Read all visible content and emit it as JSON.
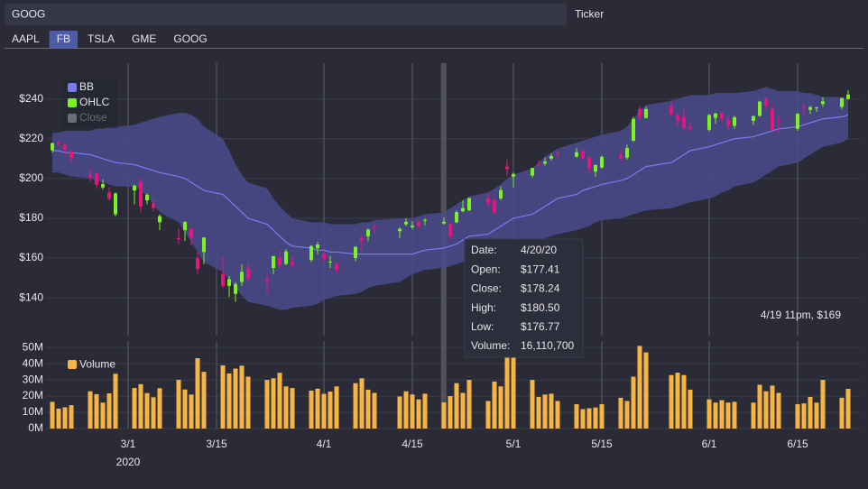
{
  "ticker_input": {
    "value": "GOOG",
    "label": "Ticker"
  },
  "tabs": {
    "items": [
      "AAPL",
      "FB",
      "TSLA",
      "GME",
      "GOOG"
    ],
    "active": 1
  },
  "chart_data": {
    "type": "candlestick",
    "x": [
      "2020-02-18",
      "2020-02-19",
      "2020-02-20",
      "2020-02-21",
      "2020-02-24",
      "2020-02-25",
      "2020-02-26",
      "2020-02-27",
      "2020-02-28",
      "2020-03-02",
      "2020-03-03",
      "2020-03-04",
      "2020-03-05",
      "2020-03-06",
      "2020-03-09",
      "2020-03-10",
      "2020-03-11",
      "2020-03-12",
      "2020-03-13",
      "2020-03-16",
      "2020-03-17",
      "2020-03-18",
      "2020-03-19",
      "2020-03-20",
      "2020-03-23",
      "2020-03-24",
      "2020-03-25",
      "2020-03-26",
      "2020-03-27",
      "2020-03-30",
      "2020-03-31",
      "2020-04-01",
      "2020-04-02",
      "2020-04-03",
      "2020-04-06",
      "2020-04-07",
      "2020-04-08",
      "2020-04-09",
      "2020-04-13",
      "2020-04-14",
      "2020-04-15",
      "2020-04-16",
      "2020-04-17",
      "2020-04-20",
      "2020-04-21",
      "2020-04-22",
      "2020-04-23",
      "2020-04-24",
      "2020-04-27",
      "2020-04-28",
      "2020-04-29",
      "2020-04-30",
      "2020-05-01",
      "2020-05-04",
      "2020-05-05",
      "2020-05-06",
      "2020-05-07",
      "2020-05-08",
      "2020-05-11",
      "2020-05-12",
      "2020-05-13",
      "2020-05-14",
      "2020-05-15",
      "2020-05-18",
      "2020-05-19",
      "2020-05-20",
      "2020-05-21",
      "2020-05-22",
      "2020-05-26",
      "2020-05-27",
      "2020-05-28",
      "2020-05-29",
      "2020-06-01",
      "2020-06-02",
      "2020-06-03",
      "2020-06-04",
      "2020-06-05",
      "2020-06-08",
      "2020-06-09",
      "2020-06-10",
      "2020-06-11",
      "2020-06-12",
      "2020-06-15",
      "2020-06-16",
      "2020-06-17",
      "2020-06-18",
      "2020-06-19",
      "2020-06-22",
      "2020-06-23"
    ],
    "xlim": [
      "2020-02-17",
      "2020-06-25"
    ],
    "xticks": [
      {
        "value": "2020-03-01",
        "label": "3/1"
      },
      {
        "value": "2020-03-15",
        "label": "3/15"
      },
      {
        "value": "2020-04-01",
        "label": "4/1"
      },
      {
        "value": "2020-04-15",
        "label": "4/15"
      },
      {
        "value": "2020-05-01",
        "label": "5/1"
      },
      {
        "value": "2020-05-15",
        "label": "5/15"
      },
      {
        "value": "2020-06-01",
        "label": "6/1"
      },
      {
        "value": "2020-06-15",
        "label": "6/15"
      }
    ],
    "x_year_label": {
      "value": "2020-03-01",
      "label": "2020"
    },
    "open": [
      214.2,
      218.0,
      217.0,
      213.5,
      202.0,
      202.5,
      195.5,
      193.0,
      182.0,
      194.0,
      198.5,
      189.0,
      187.5,
      178.0,
      170.0,
      174.0,
      174.5,
      160.0,
      163.0,
      152.0,
      146.0,
      142.0,
      148.0,
      155.0,
      149.0,
      155.0,
      160.0,
      157.0,
      158.0,
      159.0,
      165.0,
      162.0,
      158.0,
      157.0,
      160.0,
      170.0,
      171.0,
      176.0,
      173.5,
      177.0,
      175.5,
      178.0,
      179.0,
      177.41,
      177.0,
      178.0,
      183.5,
      184.0,
      190.0,
      189.0,
      190.0,
      206.0,
      201.0,
      201.5,
      207.0,
      207.5,
      210.0,
      213.0,
      211.0,
      213.5,
      210.5,
      203.5,
      205.5,
      212.0,
      210.5,
      219.0,
      235.0,
      230.5,
      236.5,
      232.0,
      231.0,
      226.0,
      224.5,
      230.5,
      233.0,
      229.5,
      226.5,
      229.0,
      231.5,
      240.0,
      235.0,
      229.0,
      225.0,
      236.0,
      234.5,
      235.5,
      237.5,
      236.0,
      240.0
    ],
    "high": [
      218.0,
      219.0,
      217.4,
      214.0,
      205.0,
      203.0,
      199.5,
      195.5,
      193.0,
      197.0,
      200.0,
      192.5,
      189.5,
      182.0,
      175.0,
      178.5,
      175.5,
      163.0,
      170.5,
      160.0,
      151.0,
      148.0,
      157.0,
      157.5,
      152.0,
      161.0,
      164.0,
      164.5,
      161.0,
      166.5,
      168.0,
      163.5,
      161.0,
      158.0,
      166.0,
      171.5,
      175.0,
      177.0,
      175.5,
      180.0,
      178.5,
      179.5,
      180.0,
      180.5,
      178.0,
      184.0,
      189.0,
      190.5,
      192.5,
      190.5,
      196.0,
      209.5,
      203.0,
      205.5,
      209.0,
      210.5,
      212.5,
      213.5,
      215.5,
      215.0,
      211.5,
      207.0,
      211.5,
      214.5,
      217.0,
      231.0,
      236.5,
      236.0,
      239.5,
      233.0,
      235.0,
      228.0,
      232.5,
      233.0,
      233.5,
      231.5,
      231.5,
      231.5,
      239.0,
      241.0,
      236.5,
      231.5,
      233.0,
      237.5,
      236.5,
      236.0,
      240.8,
      240.8,
      244.5
    ],
    "low": [
      213.0,
      216.2,
      212.0,
      208.0,
      198.5,
      195.0,
      194.5,
      189.0,
      181.0,
      187.0,
      183.0,
      187.0,
      183.5,
      174.0,
      167.0,
      168.5,
      166.5,
      152.0,
      157.0,
      145.0,
      140.5,
      138.0,
      146.0,
      148.0,
      142.0,
      152.0,
      155.0,
      156.5,
      155.0,
      158.0,
      162.0,
      158.5,
      155.0,
      152.0,
      158.5,
      163.5,
      168.5,
      172.0,
      170.0,
      176.0,
      174.5,
      175.0,
      176.5,
      176.77,
      169.5,
      177.5,
      183.0,
      183.5,
      186.0,
      182.0,
      189.0,
      201.5,
      195.5,
      200.5,
      206.0,
      206.5,
      209.0,
      210.5,
      210.5,
      209.5,
      202.5,
      201.0,
      205.0,
      208.5,
      209.5,
      218.5,
      229.0,
      230.0,
      232.0,
      226.0,
      224.5,
      223.5,
      223.5,
      227.5,
      228.5,
      224.5,
      225.0,
      227.0,
      231.0,
      235.0,
      224.0,
      222.5,
      224.0,
      232.0,
      232.5,
      233.5,
      236.0,
      235.0,
      239.5
    ],
    "close": [
      217.8,
      217.5,
      214.6,
      210.2,
      200.7,
      196.8,
      197.2,
      189.8,
      192.5,
      196.4,
      185.9,
      191.8,
      185.2,
      181.1,
      169.5,
      178.2,
      170.2,
      154.5,
      170.3,
      146.0,
      149.4,
      146.9,
      153.1,
      149.7,
      148.1,
      161.0,
      156.2,
      163.3,
      156.8,
      166.0,
      166.8,
      159.6,
      158.2,
      154.2,
      165.6,
      168.8,
      174.3,
      175.2,
      174.7,
      178.2,
      176.3,
      176.2,
      179.2,
      178.24,
      170.8,
      183.1,
      185.1,
      190.1,
      187.5,
      182.9,
      194.2,
      204.7,
      202.3,
      205.3,
      206.9,
      208.5,
      211.3,
      212.4,
      213.2,
      210.1,
      205.1,
      206.8,
      210.9,
      210.0,
      215.3,
      230.0,
      231.0,
      234.9,
      232.2,
      229.1,
      225.5,
      225.1,
      231.9,
      232.7,
      230.2,
      226.3,
      230.8,
      231.4,
      238.7,
      236.7,
      224.4,
      228.6,
      232.5,
      235.5,
      235.9,
      235.7,
      238.8,
      240.3,
      242.2
    ],
    "ylim": [
      121,
      258
    ],
    "yticks": [
      {
        "value": 140,
        "label": "$140"
      },
      {
        "value": 160,
        "label": "$160"
      },
      {
        "value": 180,
        "label": "$180"
      },
      {
        "value": 200,
        "label": "$200"
      },
      {
        "value": 220,
        "label": "$220"
      },
      {
        "value": 240,
        "label": "$240"
      }
    ],
    "grid": true,
    "series": [
      {
        "name": "BB",
        "color": "#7b7bf0",
        "fill": "#4a4a8c",
        "visible": true,
        "upper": [
          223,
          223,
          224,
          224,
          224,
          225,
          225,
          226,
          226,
          227,
          228,
          229,
          230,
          231,
          233,
          233,
          232,
          230,
          226,
          220,
          214,
          207,
          202,
          198,
          195,
          190,
          186,
          183,
          180,
          178,
          178,
          178,
          177,
          177,
          177,
          178,
          178,
          179,
          180,
          180,
          180,
          181,
          182,
          183,
          185,
          187,
          189,
          191,
          193,
          195,
          197,
          200,
          202,
          205,
          208,
          211,
          213,
          215,
          218,
          219,
          220,
          221,
          222,
          224,
          226,
          230,
          234,
          237,
          239,
          240,
          241,
          242,
          242,
          243,
          243,
          243,
          243,
          244,
          245,
          246,
          245,
          244,
          244,
          243,
          243,
          242,
          241,
          241,
          240
        ],
        "middle": [
          214,
          214,
          213,
          213,
          212,
          211,
          210,
          209,
          208,
          207,
          206,
          205,
          204,
          203,
          201,
          200,
          198,
          196,
          194,
          192,
          189,
          186,
          183,
          180,
          177,
          174,
          171,
          168,
          166,
          165,
          164,
          164,
          163,
          163,
          162,
          162,
          162,
          162,
          162,
          162,
          162,
          163,
          164,
          165,
          166,
          167,
          169,
          171,
          172,
          174,
          176,
          178,
          180,
          182,
          184,
          186,
          188,
          190,
          192,
          194,
          195,
          196,
          197,
          199,
          200,
          202,
          204,
          206,
          208,
          210,
          212,
          214,
          216,
          217,
          218,
          219,
          220,
          221,
          222,
          223,
          224,
          225,
          226,
          227,
          228,
          229,
          230,
          231,
          232
        ],
        "lower": [
          203,
          203,
          202,
          201,
          200,
          199,
          198,
          197,
          196,
          196,
          194,
          191,
          187,
          183,
          178,
          173,
          168,
          163,
          158,
          153,
          149,
          145,
          141,
          138,
          136,
          135,
          134,
          134,
          135,
          136,
          137,
          139,
          140,
          141,
          142,
          143,
          145,
          146,
          148,
          150,
          152,
          153,
          154,
          155,
          156,
          157,
          158,
          159,
          160,
          161,
          163,
          165,
          166,
          168,
          169,
          170,
          171,
          172,
          174,
          175,
          176,
          178,
          179,
          180,
          181,
          182,
          183,
          184,
          185,
          186,
          187,
          188,
          190,
          191,
          193,
          194,
          196,
          198,
          200,
          202,
          204,
          206,
          208,
          210,
          212,
          214,
          216,
          218,
          220
        ]
      },
      {
        "name": "OHLC",
        "color": "#7cf31e",
        "down_color": "#e5157c",
        "visible": true
      },
      {
        "name": "Close",
        "color": "#6c6c74",
        "visible": false
      }
    ],
    "volume": {
      "name": "Volume",
      "color": "#f6b543",
      "values": [
        16500000,
        12300000,
        13100000,
        14400000,
        23000000,
        21200000,
        16000000,
        21700000,
        33800000,
        25000000,
        27400000,
        21900000,
        19300000,
        24900000,
        30100000,
        24100000,
        21000000,
        43400000,
        35000000,
        39000000,
        34000000,
        37000000,
        38800000,
        32000000,
        30000000,
        31000000,
        34400000,
        26000000,
        25000000,
        23400000,
        24600000,
        21400000,
        22800000,
        26000000,
        28000000,
        31000000,
        24000000,
        22000000,
        19800000,
        23000000,
        21000000,
        18000000,
        21500000,
        16110700,
        20000000,
        28000000,
        22000000,
        30000000,
        17000000,
        29000000,
        26000000,
        45000000,
        46000000,
        30000000,
        19500000,
        21000000,
        21500000,
        17000000,
        15000000,
        12000000,
        12500000,
        13000000,
        15000000,
        19000000,
        17000000,
        32000000,
        51000000,
        47000000,
        33000000,
        34500000,
        33000000,
        24000000,
        18000000,
        16000000,
        17500000,
        16000000,
        16500000,
        16000000,
        27000000,
        23000000,
        26500000,
        22000000,
        15000000,
        15500000,
        19500000,
        16000000,
        30000000,
        19000000,
        24500000
      ],
      "ylim": [
        0,
        54000000
      ],
      "yticks": [
        {
          "value": 0,
          "label": "0M"
        },
        {
          "value": 10000000,
          "label": "10M"
        },
        {
          "value": 20000000,
          "label": "20M"
        },
        {
          "value": 30000000,
          "label": "30M"
        },
        {
          "value": 40000000,
          "label": "40M"
        },
        {
          "value": 50000000,
          "label": "50M"
        }
      ]
    },
    "tooltip": {
      "rows": [
        {
          "label": "Date:",
          "value": "4/20/20"
        },
        {
          "label": "Open:",
          "value": 177.41,
          "value_label": "$177.41"
        },
        {
          "label": "Close:",
          "value": 178.24,
          "value_label": "$178.24"
        },
        {
          "label": "High:",
          "value": 180.5,
          "value_label": "$180.50"
        },
        {
          "label": "Low:",
          "value": 176.77,
          "value_label": "$176.77"
        },
        {
          "label": "Volume:",
          "value": 16110700,
          "value_label": "16,110,700"
        }
      ]
    },
    "crosshair": {
      "x": "2020-04-19T23:00",
      "label": "4/19 11pm, $169"
    }
  }
}
